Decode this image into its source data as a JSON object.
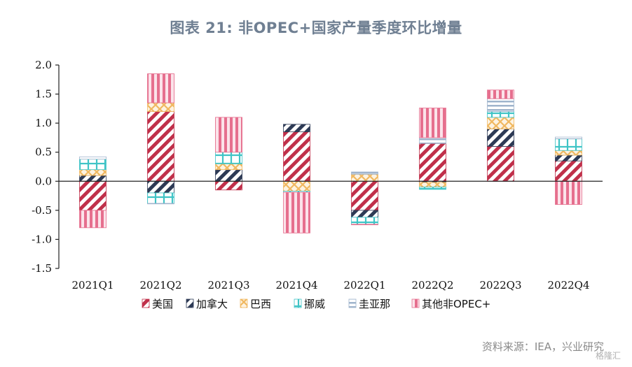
{
  "title": "图表 21: 非OPEC+国家产量季度环比增量",
  "source": "资料来源：IEA，兴业研究",
  "watermark": "格隆汇",
  "chart_data": {
    "type": "bar",
    "stacked": true,
    "categories": [
      "2021Q1",
      "2021Q2",
      "2021Q3",
      "2021Q4",
      "2022Q1",
      "2022Q2",
      "2022Q3",
      "2022Q4"
    ],
    "ylim": [
      -1.5,
      2.0
    ],
    "yticks": [
      2.0,
      1.5,
      1.0,
      0.5,
      0.0,
      -0.5,
      -1.0,
      -1.5
    ],
    "ytick_labels": [
      "2.0",
      "1.5",
      "1.0",
      "0.5",
      "0.0",
      "-0.5",
      "-1.0",
      "-1.5"
    ],
    "legend_position": "bottom",
    "series": [
      {
        "name": "美国",
        "color": "#c0304a",
        "pattern": "diag-red",
        "values": [
          -0.5,
          1.2,
          -0.15,
          0.85,
          -0.5,
          0.65,
          0.6,
          0.35
        ]
      },
      {
        "name": "加拿大",
        "color": "#2d3a55",
        "pattern": "diag-navy",
        "values": [
          0.1,
          -0.2,
          0.2,
          0.13,
          -0.12,
          -0.02,
          0.3,
          0.1
        ]
      },
      {
        "name": "巴西",
        "color": "#f0b860",
        "pattern": "cross-gold",
        "values": [
          0.1,
          0.15,
          0.1,
          -0.17,
          0.12,
          -0.08,
          0.2,
          0.08
        ]
      },
      {
        "name": "挪威",
        "color": "#3fc4c6",
        "pattern": "grid-teal",
        "values": [
          0.18,
          -0.18,
          0.2,
          -0.02,
          -0.12,
          -0.04,
          0.1,
          0.2
        ]
      },
      {
        "name": "圭亚那",
        "color": "#9fb4cc",
        "pattern": "horiz-blue",
        "values": [
          0.04,
          -0.01,
          0.0,
          0.0,
          0.04,
          0.1,
          0.22,
          0.03
        ]
      },
      {
        "name": "其他非OPEC+",
        "color": "#e66f8e",
        "pattern": "vert-pink",
        "values": [
          -0.3,
          0.5,
          0.6,
          -0.7,
          -0.01,
          0.51,
          0.15,
          -0.4
        ]
      }
    ]
  }
}
